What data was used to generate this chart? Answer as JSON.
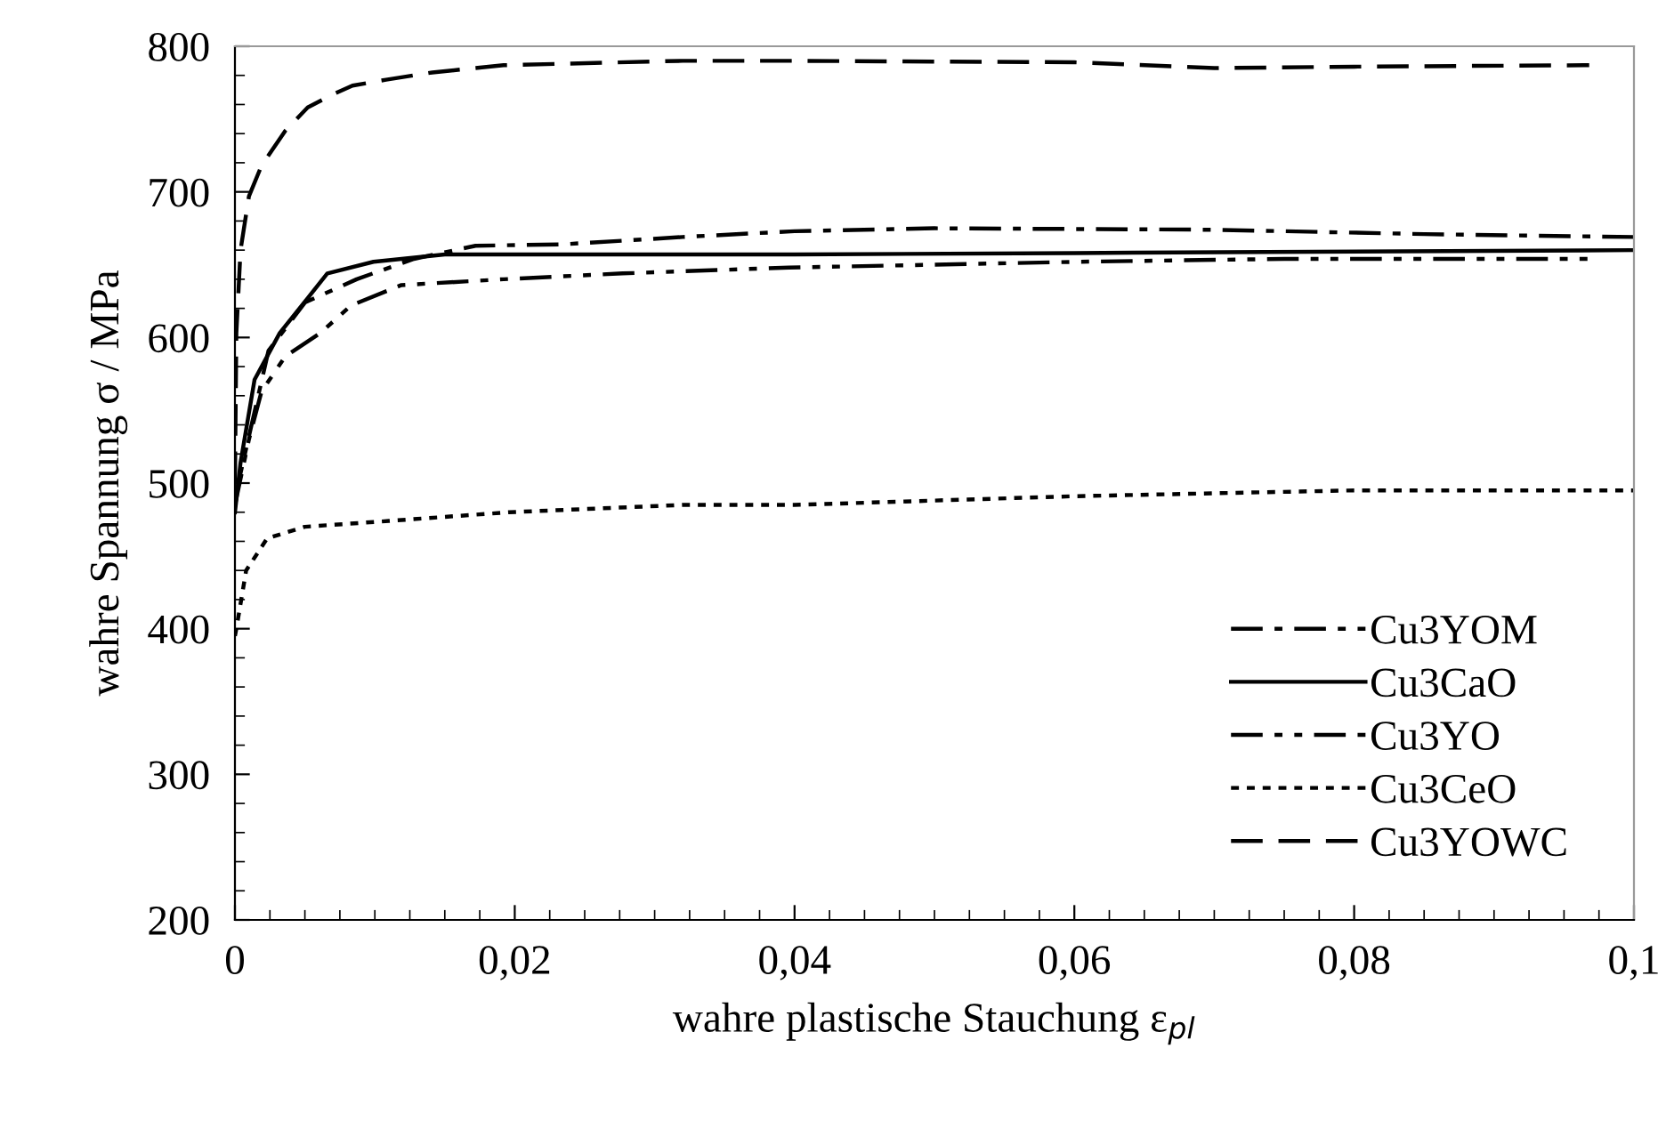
{
  "chart_data": {
    "type": "line",
    "xlabel": "wahre plastische Stauchung ε$_{pl}$",
    "ylabel": "wahre Spannung σ / MPa",
    "xlim": [
      0,
      0.1
    ],
    "ylim": [
      200,
      800
    ],
    "xticks": [
      0,
      {
        "value": 0.02,
        "label": "0,02"
      },
      {
        "value": 0.04,
        "label": "0,04"
      },
      {
        "value": 0.06,
        "label": "0,06"
      },
      {
        "value": 0.08,
        "label": "0,08"
      },
      {
        "value": 0.1,
        "label": "0,1"
      }
    ],
    "yticks": [
      200,
      300,
      400,
      500,
      600,
      700,
      800
    ],
    "grid": false,
    "legend": "bottom right",
    "series": [
      {
        "name": "Cu3YOM",
        "color": "#000000",
        "line_style": "dashdot",
        "x": [
          0,
          0.0024,
          0.005,
          0.0087,
          0.0128,
          0.0172,
          0.0235,
          0.032,
          0.04,
          0.05,
          0.07,
          0.085,
          0.1
        ],
        "values": [
          490,
          591,
          624,
          640,
          654,
          663,
          664,
          669,
          673,
          675,
          674,
          671,
          669
        ]
      },
      {
        "name": "Cu3CaO",
        "color": "#000000",
        "line_style": "solid",
        "x": [
          0,
          0.0004,
          0.0014,
          0.0032,
          0.0052,
          0.0066,
          0.0099,
          0.015,
          0.04,
          0.06,
          0.1
        ],
        "values": [
          480,
          514,
          571,
          603,
          627,
          644,
          652,
          657,
          657,
          658,
          660
        ]
      },
      {
        "name": "Cu3YO",
        "color": "#000000",
        "line_style": "dashdotdot",
        "x": [
          0,
          0.001,
          0.0019,
          0.0036,
          0.0061,
          0.0083,
          0.0119,
          0.0192,
          0.0277,
          0.0396,
          0.0603,
          0.075,
          0.0968
        ],
        "values": [
          485,
          530,
          563,
          587,
          603,
          622,
          636,
          640,
          644,
          648,
          652,
          654,
          654
        ]
      },
      {
        "name": "Cu3CeO",
        "color": "#000000",
        "line_style": "dotted",
        "x": [
          0,
          0.0001,
          0.0008,
          0.0023,
          0.005,
          0.011,
          0.0196,
          0.032,
          0.04,
          0.06,
          0.08,
          0.1
        ],
        "values": [
          395,
          400,
          440,
          462,
          470,
          474,
          480,
          485,
          485,
          491,
          495,
          495
        ]
      },
      {
        "name": "Cu3YOWC",
        "color": "#000000",
        "line_style": "dashed",
        "x": [
          0,
          0.0001,
          0.0004,
          0.001,
          0.0019,
          0.0036,
          0.0052,
          0.007,
          0.0084,
          0.0108,
          0.0141,
          0.0192,
          0.032,
          0.04,
          0.06,
          0.07,
          0.08,
          0.0968
        ],
        "values": [
          500,
          603,
          660,
          697,
          718,
          742,
          758,
          767,
          773,
          777,
          782,
          787,
          790,
          790,
          789,
          785,
          786,
          787
        ]
      }
    ]
  }
}
